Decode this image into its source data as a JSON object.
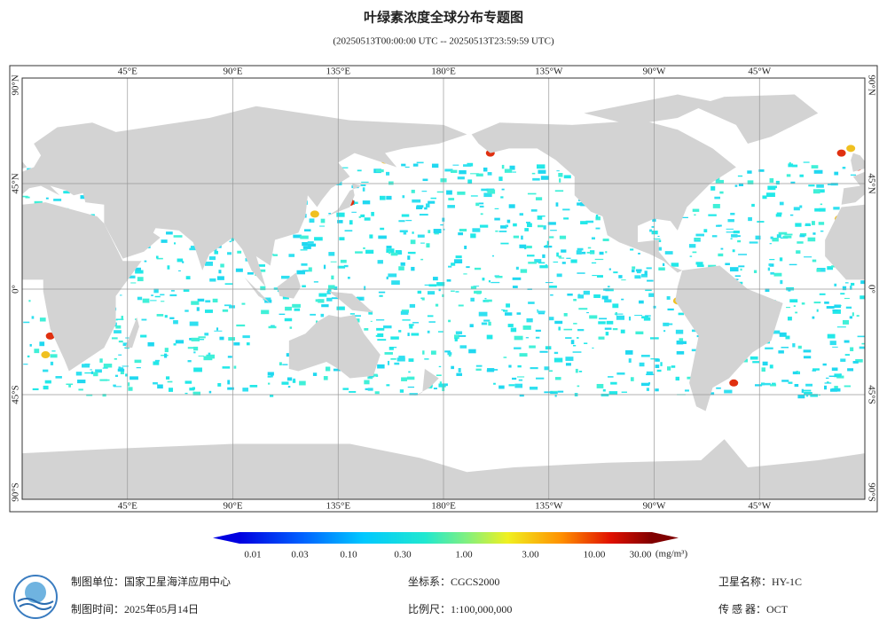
{
  "header": {
    "title": "叶绿素浓度全球分布专题图",
    "subtitle": "(20250513T00:00:00 UTC -- 20250513T23:59:59 UTC)"
  },
  "map": {
    "lon_labels": [
      "45°E",
      "90°E",
      "135°E",
      "180°E",
      "135°W",
      "90°W",
      "45°W"
    ],
    "lat_labels": [
      "90°N",
      "45°N",
      "0°",
      "45°S",
      "90°S"
    ]
  },
  "legend": {
    "labels": [
      "0.01",
      "0.03",
      "0.10",
      "0.30",
      "1.00",
      "3.00",
      "10.00",
      "30.00"
    ],
    "unit": "(mg/m³)"
  },
  "footer": {
    "producer": {
      "label": "制图单位：",
      "value": "国家卫星海洋应用中心"
    },
    "date": {
      "label": "制图时间：",
      "value": "2025年05月14日"
    },
    "crs": {
      "label": "坐标系：",
      "value": "CGCS2000"
    },
    "scale": {
      "label": "比例尺：",
      "value": "1:100,000,000"
    },
    "satellite": {
      "label": "卫星名称：",
      "value": "HY-1C"
    },
    "sensor": {
      "label": "传 感 器：",
      "value": "OCT"
    }
  }
}
